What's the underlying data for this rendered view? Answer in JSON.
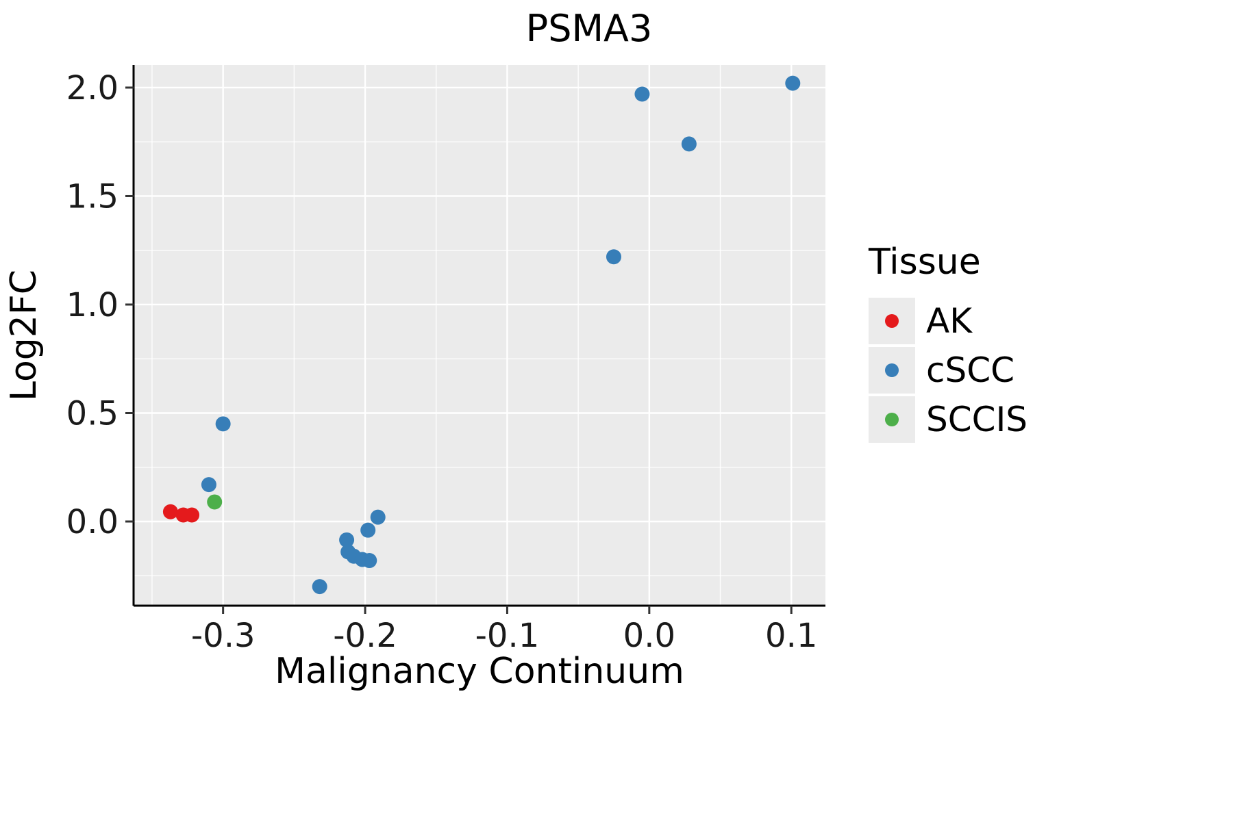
{
  "chart_data": {
    "type": "scatter",
    "title": "PSMA3",
    "xlabel": "Malignancy Continuum",
    "ylabel": "Log2FC",
    "xlim": [
      -0.363,
      0.124
    ],
    "ylim": [
      -0.388,
      2.104
    ],
    "xticks": [
      -0.3,
      -0.2,
      -0.1,
      0.0,
      0.1
    ],
    "xtick_labels": [
      "-0.3",
      "-0.2",
      "-0.1",
      "0.0",
      "0.1"
    ],
    "yticks": [
      0.0,
      0.5,
      1.0,
      1.5,
      2.0
    ],
    "ytick_labels": [
      "0.0",
      "0.5",
      "1.0",
      "1.5",
      "2.0"
    ],
    "grid": true,
    "legend_title": "Tissue",
    "legend_position": "right",
    "colors": {
      "panel_bg": "#EBEBEB",
      "grid": "#FFFFFF",
      "axis": "#000000",
      "tick": "#333333",
      "legend_key_bg": "#EBEBEB"
    },
    "series": [
      {
        "name": "AK",
        "color": "#E41A1C",
        "points": [
          [
            -0.337,
            0.045
          ],
          [
            -0.328,
            0.03
          ],
          [
            -0.322,
            0.03
          ]
        ]
      },
      {
        "name": "cSCC",
        "color": "#377EB8",
        "points": [
          [
            -0.31,
            0.17
          ],
          [
            -0.3,
            0.45
          ],
          [
            -0.232,
            -0.3
          ],
          [
            -0.213,
            -0.085
          ],
          [
            -0.212,
            -0.14
          ],
          [
            -0.208,
            -0.16
          ],
          [
            -0.202,
            -0.175
          ],
          [
            -0.197,
            -0.18
          ],
          [
            -0.198,
            -0.04
          ],
          [
            -0.191,
            0.02
          ],
          [
            -0.025,
            1.22
          ],
          [
            -0.005,
            1.97
          ],
          [
            0.028,
            1.74
          ],
          [
            0.101,
            2.02
          ]
        ]
      },
      {
        "name": "SCCIS",
        "color": "#4DAF4A",
        "points": [
          [
            -0.306,
            0.09
          ]
        ]
      }
    ]
  }
}
